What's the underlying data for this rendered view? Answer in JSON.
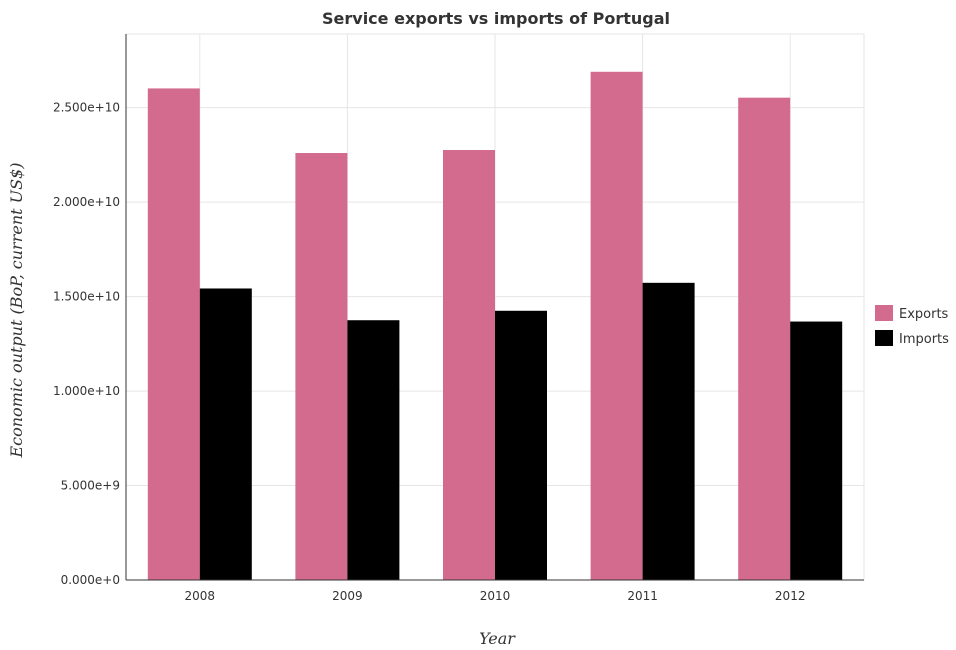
{
  "chart_data": {
    "type": "bar",
    "title": "Service exports vs imports of Portugal",
    "xlabel": "Year",
    "ylabel": "Economic output (BoP, current US$)",
    "categories": [
      "2008",
      "2009",
      "2010",
      "2011",
      "2012"
    ],
    "series": [
      {
        "name": "Exports",
        "color": "#d36b8f",
        "values": [
          26020000000,
          22600000000,
          22760000000,
          26900000000,
          25530000000
        ]
      },
      {
        "name": "Imports",
        "color": "#000000",
        "values": [
          15430000000,
          13750000000,
          14250000000,
          15730000000,
          13680000000
        ]
      }
    ],
    "ylim": [
      0,
      28900000000
    ],
    "yticks": [
      0,
      5000000000,
      10000000000,
      15000000000,
      20000000000,
      25000000000
    ],
    "ytick_labels": [
      "0.000e+0",
      "5.000e+9",
      "1.000e+10",
      "1.500e+10",
      "2.000e+10",
      "2.500e+10"
    ],
    "grid": true,
    "legend_position": "right"
  }
}
